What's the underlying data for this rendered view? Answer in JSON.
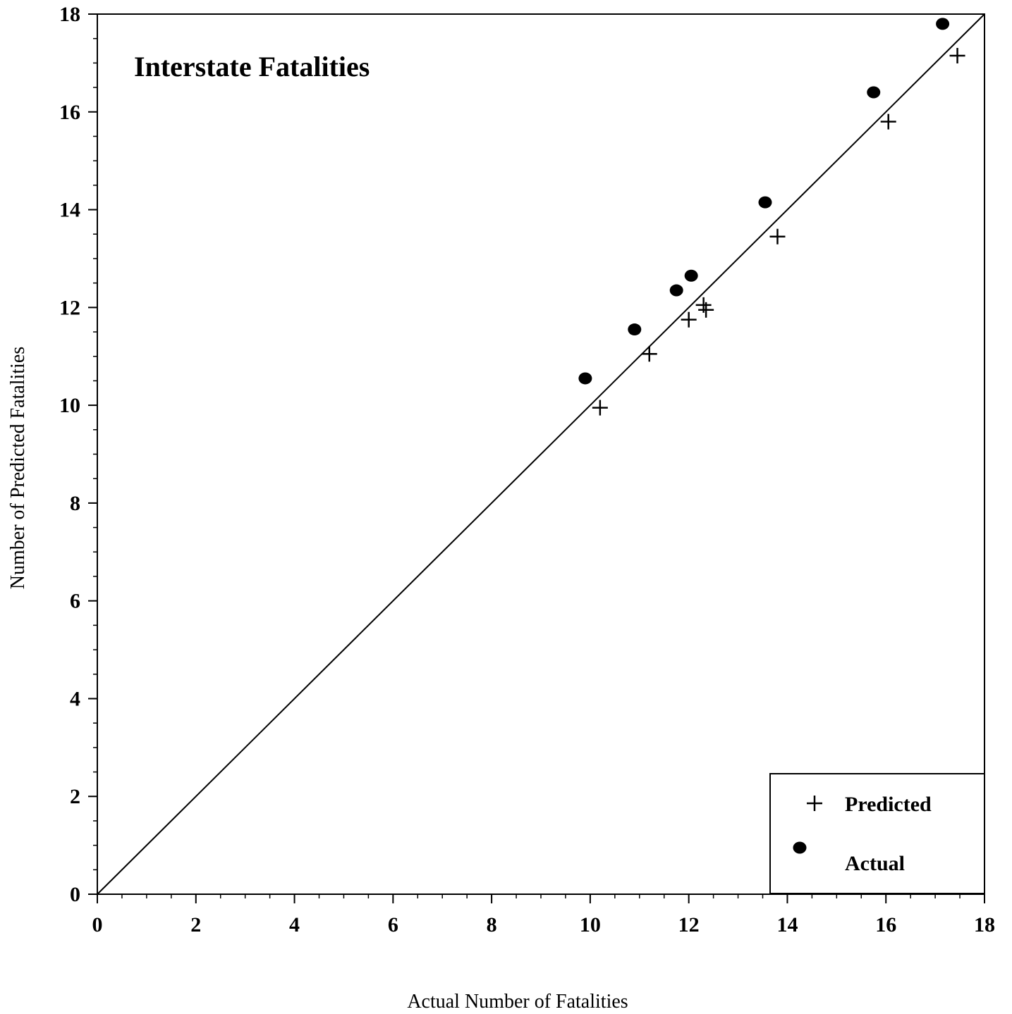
{
  "chart_data": {
    "type": "scatter",
    "title": "Interstate Fatalities",
    "xlabel": "Actual Number of Fatalities",
    "ylabel": "Number of Predicted Fatalities",
    "xlim": [
      0,
      18
    ],
    "ylim": [
      0,
      18
    ],
    "x_ticks": [
      "0",
      "2",
      "4",
      "6",
      "8",
      "10",
      "12",
      "14",
      "16",
      "18"
    ],
    "y_ticks": [
      "0",
      "2",
      "4",
      "6",
      "8",
      "10",
      "12",
      "14",
      "16",
      "18"
    ],
    "reference_line": {
      "from": [
        0,
        0
      ],
      "to": [
        18,
        18
      ]
    },
    "legend": {
      "placement": "bottom-right"
    },
    "series": [
      {
        "name": "Predicted",
        "marker": "plus",
        "points": [
          {
            "x": 10.2,
            "y": 9.95
          },
          {
            "x": 11.2,
            "y": 11.05
          },
          {
            "x": 12.0,
            "y": 11.75
          },
          {
            "x": 12.3,
            "y": 12.05
          },
          {
            "x": 12.35,
            "y": 11.95
          },
          {
            "x": 13.8,
            "y": 13.45
          },
          {
            "x": 16.05,
            "y": 15.8
          },
          {
            "x": 17.45,
            "y": 17.15
          }
        ]
      },
      {
        "name": "Actual",
        "marker": "dot",
        "points": [
          {
            "x": 9.9,
            "y": 10.55
          },
          {
            "x": 10.9,
            "y": 11.55
          },
          {
            "x": 11.75,
            "y": 12.35
          },
          {
            "x": 12.05,
            "y": 12.65
          },
          {
            "x": 13.55,
            "y": 14.15
          },
          {
            "x": 15.75,
            "y": 16.4
          },
          {
            "x": 17.15,
            "y": 17.8
          }
        ]
      }
    ]
  }
}
